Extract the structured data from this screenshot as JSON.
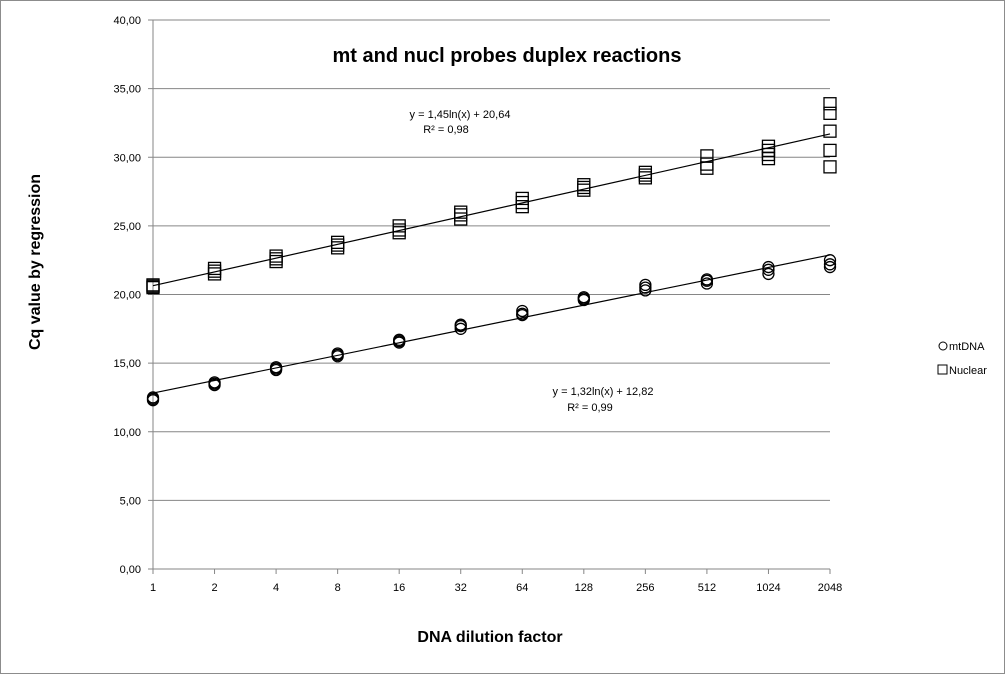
{
  "chart_data": {
    "type": "scatter",
    "title": "mt and nucl probes duplex reactions",
    "xlabel": "DNA dilution factor",
    "ylabel": "Cq value by regression",
    "x_scale": "log2",
    "categories": [
      "1",
      "2",
      "4",
      "8",
      "16",
      "32",
      "64",
      "128",
      "256",
      "512",
      "1024",
      "2048"
    ],
    "y_ticks": [
      "0,00",
      "5,00",
      "10,00",
      "15,00",
      "20,00",
      "25,00",
      "30,00",
      "35,00",
      "40,00"
    ],
    "ylim": [
      0,
      40
    ],
    "grid": "horizontal",
    "legend_position": "right",
    "series": [
      {
        "name": "mtDNA",
        "marker": "circle",
        "points": [
          {
            "x": 1,
            "y": [
              12.3,
              12.4,
              12.5
            ]
          },
          {
            "x": 2,
            "y": [
              13.4,
              13.5,
              13.6
            ]
          },
          {
            "x": 4,
            "y": [
              14.5,
              14.6,
              14.7
            ]
          },
          {
            "x": 8,
            "y": [
              15.5,
              15.6,
              15.7
            ]
          },
          {
            "x": 16,
            "y": [
              16.5,
              16.6,
              16.7
            ]
          },
          {
            "x": 32,
            "y": [
              17.5,
              17.7,
              17.8
            ]
          },
          {
            "x": 64,
            "y": [
              18.5,
              18.6,
              18.8
            ]
          },
          {
            "x": 128,
            "y": [
              19.6,
              19.7,
              19.8
            ]
          },
          {
            "x": 256,
            "y": [
              20.3,
              20.5,
              20.7
            ]
          },
          {
            "x": 512,
            "y": [
              20.8,
              21.0,
              21.1
            ]
          },
          {
            "x": 1024,
            "y": [
              21.5,
              21.8,
              22.0
            ]
          },
          {
            "x": 2048,
            "y": [
              22.0,
              22.2,
              22.5
            ]
          }
        ],
        "trendline": {
          "a": 1.32,
          "b": 12.82,
          "equation": "y = 1,32ln(x) + 12,82",
          "r2": "R² = 0,99"
        }
      },
      {
        "name": "Nuclear",
        "marker": "square",
        "points": [
          {
            "x": 1,
            "y": [
              20.5,
              20.6,
              20.7
            ]
          },
          {
            "x": 2,
            "y": [
              21.5,
              21.7,
              21.9
            ]
          },
          {
            "x": 4,
            "y": [
              22.4,
              22.6,
              22.8
            ]
          },
          {
            "x": 8,
            "y": [
              23.4,
              23.6,
              23.8
            ]
          },
          {
            "x": 16,
            "y": [
              24.5,
              24.7,
              25.0
            ]
          },
          {
            "x": 32,
            "y": [
              25.5,
              25.8,
              26.0
            ]
          },
          {
            "x": 64,
            "y": [
              26.4,
              26.7,
              27.0
            ]
          },
          {
            "x": 128,
            "y": [
              27.6,
              27.8,
              28.0
            ]
          },
          {
            "x": 256,
            "y": [
              28.5,
              28.7,
              28.9
            ]
          },
          {
            "x": 512,
            "y": [
              29.2,
              29.5,
              30.1
            ]
          },
          {
            "x": 1024,
            "y": [
              29.9,
              30.2,
              30.5,
              30.8
            ]
          },
          {
            "x": 2048,
            "y": [
              29.3,
              30.5,
              31.9,
              33.2,
              33.9
            ]
          }
        ],
        "trendline": {
          "a": 1.45,
          "b": 20.64,
          "equation": "y = 1,45ln(x) + 20,64",
          "r2": "R² = 0,98"
        }
      }
    ]
  }
}
